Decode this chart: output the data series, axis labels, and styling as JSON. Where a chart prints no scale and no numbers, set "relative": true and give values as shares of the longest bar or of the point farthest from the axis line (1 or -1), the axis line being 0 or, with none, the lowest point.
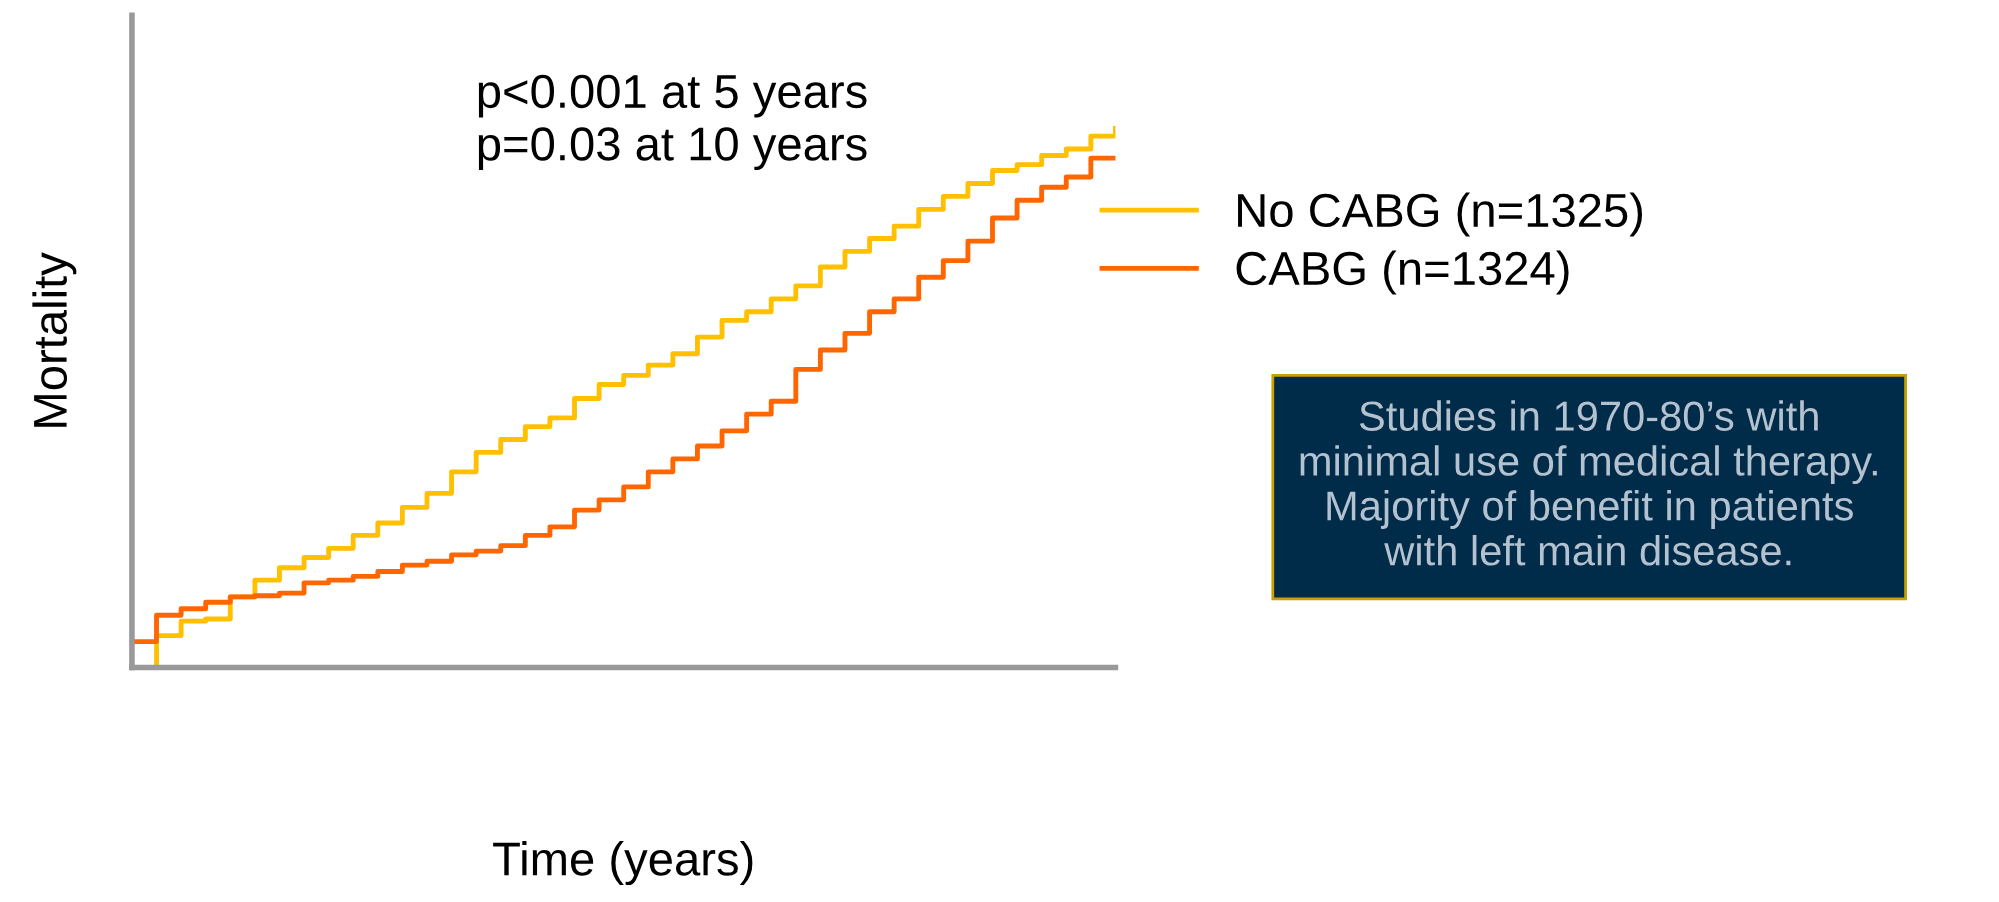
{
  "chart_data": {
    "type": "step",
    "relative": true,
    "xlabel": "Time (years)",
    "ylabel": "Mortality",
    "categories": [
      null,
      null,
      null,
      null,
      null,
      null,
      null,
      null,
      null,
      null,
      null,
      null,
      null,
      null,
      null,
      null,
      null,
      null,
      null,
      null,
      null,
      null,
      null,
      null,
      null,
      null,
      null,
      null,
      null,
      null,
      null,
      null,
      null,
      null,
      null,
      null,
      null,
      null,
      null,
      null,
      null
    ],
    "series": [
      {
        "name": "No CABG (n=1325)",
        "color": "#ffc000",
        "values": [
          0,
          0.059,
          0.086,
          0.09,
          0.131,
          0.162,
          0.185,
          0.204,
          0.221,
          0.245,
          0.268,
          0.297,
          0.323,
          0.363,
          0.399,
          0.423,
          0.447,
          0.463,
          0.499,
          0.525,
          0.542,
          0.561,
          0.582,
          0.613,
          0.644,
          0.66,
          0.684,
          0.708,
          0.743,
          0.772,
          0.796,
          0.819,
          0.85,
          0.874,
          0.898,
          0.922,
          0.933,
          0.95,
          0.962,
          0.986,
          1
        ]
      },
      {
        "name": "CABG (n=1324)",
        "color": "#ff6600",
        "values": [
          0.048,
          0.097,
          0.109,
          0.121,
          0.131,
          0.133,
          0.138,
          0.157,
          0.162,
          0.169,
          0.178,
          0.19,
          0.197,
          0.209,
          0.216,
          0.226,
          0.245,
          0.261,
          0.292,
          0.311,
          0.335,
          0.363,
          0.387,
          0.411,
          0.439,
          0.47,
          0.494,
          0.553,
          0.589,
          0.62,
          0.66,
          0.684,
          0.724,
          0.755,
          0.791,
          0.834,
          0.867,
          0.891,
          0.91,
          0.945,
          0.945
        ]
      }
    ],
    "legend": "right",
    "grid": false,
    "tick_labels": false,
    "annotations": [
      "p<0.001 at 5 years\np=0.03 at 10 years",
      "Studies in 1970-80’s with\nminimal use of medical therapy.\nMajority of benefit in patients\nwith left main disease."
    ]
  }
}
